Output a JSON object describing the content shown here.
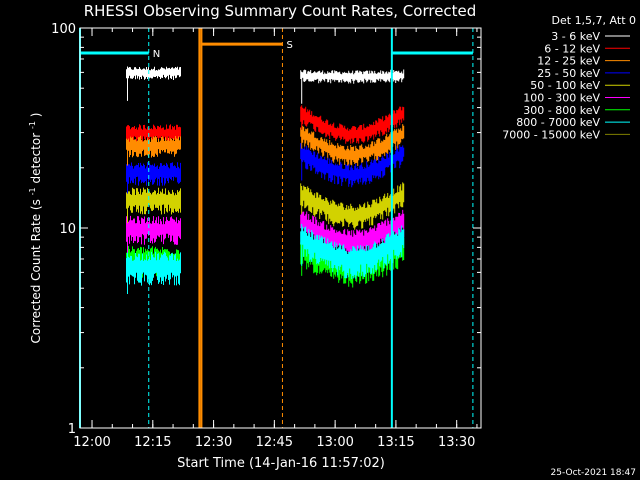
{
  "chart_data": {
    "type": "line",
    "title": "RHESSI Observing Summary Count Rates, Corrected",
    "xlabel": "Start Time (14-Jan-16 11:57:02)",
    "ylabel": "Corrected Count Rate (s⁻¹ detector⁻¹)",
    "ylabel_main": "Corrected Count Rate (s",
    "ylabel_mid": " detector",
    "ylabel_end": ")",
    "ylabel_sup": "-1",
    "yscale": "log",
    "ylim": [
      1,
      100
    ],
    "xlim": [
      "11:57:02",
      "13:36:00"
    ],
    "x_unit": "time (HH:MM)",
    "xticks": [
      "12:00",
      "12:15",
      "12:30",
      "12:45",
      "13:00",
      "13:15",
      "13:30"
    ],
    "yticks": [
      "1",
      "10",
      "100"
    ],
    "legend_title": "Det 1,5,7, Att 0",
    "legend_position": "right",
    "series": [
      {
        "name": "3 - 6 keV",
        "color": "#ffffff",
        "segments": [
          {
            "x": [
              "12:08:30",
              "12:22:00"
            ],
            "level": 60
          },
          {
            "x": [
              "12:51:30",
              "13:17:00"
            ],
            "level": 58
          }
        ]
      },
      {
        "name": "6 - 12 keV",
        "color": "#ff0000",
        "segments": [
          {
            "x": [
              "12:08:30",
              "12:22:00"
            ],
            "level": 30
          },
          {
            "x": [
              "12:51:30",
              "13:17:00"
            ],
            "level": 38
          }
        ]
      },
      {
        "name": "12 - 25 keV",
        "color": "#ff8c00",
        "segments": [
          {
            "x": [
              "12:08:30",
              "12:22:00"
            ],
            "level": 26
          },
          {
            "x": [
              "12:51:30",
              "13:17:00"
            ],
            "level": 30
          }
        ]
      },
      {
        "name": "25 - 50 keV",
        "color": "#0000ff",
        "segments": [
          {
            "x": [
              "12:08:30",
              "12:22:00"
            ],
            "level": 19
          },
          {
            "x": [
              "12:51:30",
              "13:17:00"
            ],
            "level": 24
          }
        ]
      },
      {
        "name": "50 - 100 keV",
        "color": "#d2d200",
        "segments": [
          {
            "x": [
              "12:08:30",
              "12:22:00"
            ],
            "level": 14
          },
          {
            "x": [
              "12:51:30",
              "13:17:00"
            ],
            "level": 15
          }
        ]
      },
      {
        "name": "100 - 300 keV",
        "color": "#ff00ff",
        "segments": [
          {
            "x": [
              "12:08:30",
              "12:22:00"
            ],
            "level": 10
          },
          {
            "x": [
              "12:51:30",
              "13:17:00"
            ],
            "level": 11
          }
        ]
      },
      {
        "name": "300 - 800 keV",
        "color": "#00ff00",
        "segments": [
          {
            "x": [
              "12:08:30",
              "12:22:00"
            ],
            "level": 7
          },
          {
            "x": [
              "12:51:30",
              "13:17:00"
            ],
            "level": 8
          }
        ]
      },
      {
        "name": "800 - 7000 keV",
        "color": "#00ffff",
        "segments": [
          {
            "x": [
              "12:08:30",
              "12:22:00"
            ],
            "level": 6.5
          },
          {
            "x": [
              "12:51:30",
              "13:17:00"
            ],
            "level": 9
          }
        ]
      },
      {
        "name": "7000 - 15000 keV",
        "color": "#808000",
        "segments": []
      }
    ],
    "annotations": [
      {
        "label": "N",
        "color": "#00ffff",
        "bar": [
          "11:57:02",
          "12:14:00"
        ],
        "dashed": [
          "12:14:00"
        ],
        "level": 75
      },
      {
        "label": "S",
        "color": "#ff8c00",
        "bar": [
          "12:27:00",
          "12:47:00"
        ],
        "dashed": [
          "12:47:00"
        ],
        "level": 83
      },
      {
        "label": "",
        "color": "#00ffff",
        "bar": [
          "13:14:00",
          "13:34:00"
        ],
        "dashed": [
          "13:34:00"
        ],
        "level": 75
      }
    ],
    "markers": [
      {
        "color": "#00ffff",
        "x": "11:57:02"
      },
      {
        "color": "#ff8c00",
        "x": "12:26:30"
      },
      {
        "color": "#ff8c00",
        "x": "12:27:00"
      },
      {
        "color": "#00ffff",
        "x": "13:14:00"
      }
    ],
    "grid": false
  },
  "footer": {
    "timestamp": "25-Oct-2021 18:47"
  }
}
